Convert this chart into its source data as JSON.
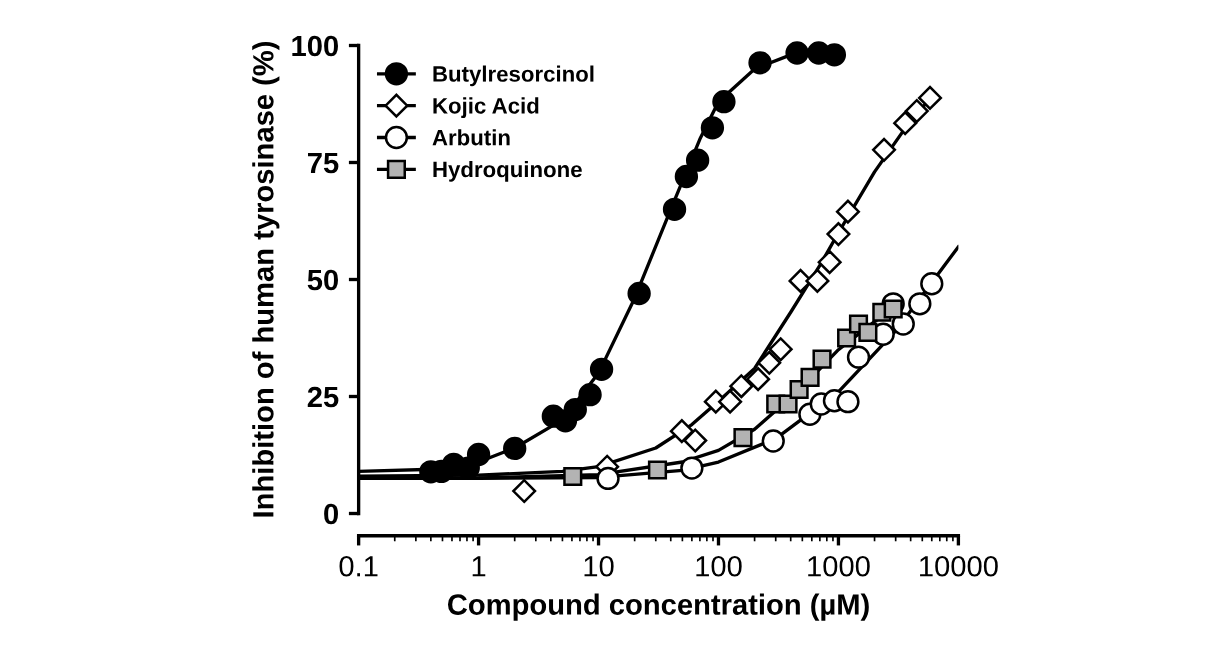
{
  "chart_data": {
    "type": "scatter",
    "xlabel": "Compound concentration (µM)",
    "ylabel": "Inhibition of human tyrosinase (%)",
    "log": "x",
    "xlim": [
      0.1,
      10000
    ],
    "xticks": [
      0.1,
      1,
      10,
      100,
      1000,
      10000
    ],
    "ylim": [
      0,
      100
    ],
    "yticks": [
      0,
      25,
      50,
      75,
      100
    ],
    "grid": false,
    "legend": "top left",
    "series": [
      {
        "name": "Butylresorcinol",
        "marker": "circle",
        "color": "#000000",
        "x": [
          0.4,
          0.49,
          0.62,
          0.82,
          1.0,
          2.0,
          4.2,
          5.3,
          6.4,
          8.5,
          10.6,
          21.8,
          43,
          54,
          67,
          89,
          111,
          222,
          452,
          685,
          925
        ],
        "values": [
          8.9,
          9,
          10.5,
          9.7,
          12.6,
          13.9,
          20.8,
          19.8,
          22.2,
          25.4,
          30.8,
          47,
          65,
          72,
          75.5,
          82.4,
          88,
          96.3,
          98.4,
          98.4,
          98
        ]
      },
      {
        "name": "Kojic Acid",
        "marker": "diamond",
        "color": "#ffffff",
        "x": [
          2.4,
          11.8,
          49.5,
          64,
          95,
          125,
          155,
          214,
          265,
          330,
          483,
          668,
          845,
          1000,
          1200,
          2400,
          3600,
          4500,
          5800
        ],
        "values": [
          4.8,
          10,
          17.6,
          15.6,
          23.9,
          23.9,
          27.2,
          28.7,
          32.2,
          35.1,
          49.7,
          49.7,
          53.7,
          59.7,
          64.5,
          77.7,
          83.4,
          86,
          88.8
        ]
      },
      {
        "name": "Arbutin",
        "marker": "circle",
        "color": "#ffffff",
        "x": [
          12,
          60,
          286,
          578,
          719,
          926,
          1200,
          1470,
          2360,
          2860,
          3470,
          4770,
          6000
        ],
        "values": [
          7.5,
          9.7,
          15.5,
          21.2,
          23.4,
          24.1,
          23.9,
          33.4,
          38.3,
          44.8,
          40.5,
          44.8,
          49.1
        ]
      },
      {
        "name": "Hydroquinone",
        "marker": "square",
        "color": "#b3b3b3",
        "x": [
          6.1,
          31,
          160,
          300,
          380,
          470,
          580,
          730,
          1170,
          1470,
          1760,
          2300,
          2860
        ],
        "values": [
          7.9,
          9.3,
          16.2,
          23.4,
          23.4,
          26.5,
          29.1,
          33,
          37.5,
          40.5,
          38.7,
          43,
          43.7
        ]
      },
      {
        "type": "line",
        "marker": "none",
        "color": "#000000",
        "x": [
          0.1,
          0.5,
          1,
          2,
          5,
          10,
          20,
          40,
          70,
          100,
          200,
          400,
          1000
        ],
        "values": [
          9,
          9.5,
          11,
          14,
          20,
          30,
          46,
          65,
          80,
          88,
          95,
          98,
          98.5
        ]
      },
      {
        "type": "line",
        "marker": "none",
        "color": "#000000",
        "x": [
          0.1,
          1,
          5,
          10,
          30,
          60,
          100,
          200,
          400,
          700,
          1000,
          2000,
          4000,
          6000
        ],
        "values": [
          8,
          8.2,
          9,
          10,
          14,
          19,
          24,
          31,
          43,
          53,
          60,
          73,
          84,
          89
        ]
      },
      {
        "type": "line",
        "marker": "none",
        "color": "#000000",
        "x": [
          0.1,
          1,
          10,
          50,
          100,
          300,
          1000,
          3000,
          10000
        ],
        "values": [
          7.5,
          7.5,
          7.7,
          9.2,
          11,
          16,
          26,
          39,
          57
        ]
      },
      {
        "type": "line",
        "marker": "none",
        "color": "#000000",
        "x": [
          0.1,
          1,
          10,
          50,
          100,
          200,
          500,
          1000,
          2000,
          3000
        ],
        "values": [
          7.5,
          7.6,
          8.3,
          11,
          13.5,
          18,
          27,
          35,
          41,
          44
        ]
      }
    ]
  }
}
